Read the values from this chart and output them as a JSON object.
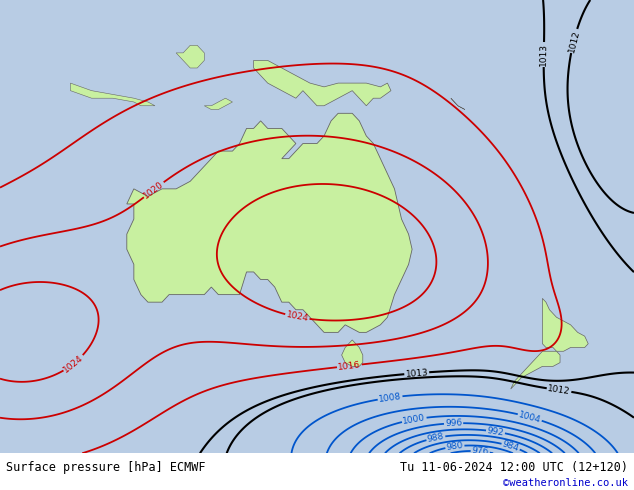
{
  "title_left": "Surface pressure [hPa] ECMWF",
  "title_right": "Tu 11-06-2024 12:00 UTC (12+120)",
  "watermark": "©weatheronline.co.uk",
  "ocean_color": "#b8cce4",
  "land_color": "#c8f0a0",
  "figsize": [
    6.34,
    4.9
  ],
  "dpi": 100,
  "map_lon_min": 95,
  "map_lon_max": 185,
  "map_lat_min": -55,
  "map_lat_max": 5,
  "red_color": "#cc0000",
  "blue_color": "#0055cc",
  "black_color": "#000000",
  "gray_color": "#888888"
}
